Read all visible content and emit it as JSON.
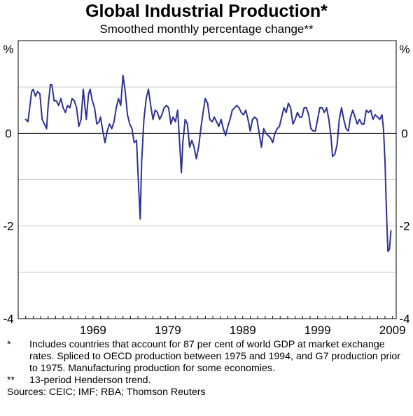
{
  "chart_data": {
    "type": "line",
    "title": "Global Industrial Production*",
    "subtitle": "Smoothed monthly percentage change**",
    "ylabel_left": "%",
    "ylabel_right": "%",
    "ylim": [
      -4,
      2
    ],
    "yticks": [
      0,
      -2,
      -4
    ],
    "yticks_top_label": "%",
    "xlim": [
      1959,
      2009.5
    ],
    "xticks": [
      1969,
      1979,
      1989,
      1999,
      2009
    ],
    "grid": "horizontal",
    "line_color": "#2e3192",
    "series": [
      {
        "values": [
          {
            "x": 1960.0,
            "y": 0.3
          },
          {
            "x": 1960.3,
            "y": 0.25
          },
          {
            "x": 1960.5,
            "y": 0.5
          },
          {
            "x": 1960.8,
            "y": 0.9
          },
          {
            "x": 1961.0,
            "y": 0.95
          },
          {
            "x": 1961.3,
            "y": 0.8
          },
          {
            "x": 1961.6,
            "y": 0.9
          },
          {
            "x": 1961.9,
            "y": 0.85
          },
          {
            "x": 1962.2,
            "y": 0.3
          },
          {
            "x": 1962.5,
            "y": 0.2
          },
          {
            "x": 1962.8,
            "y": 0.1
          },
          {
            "x": 1963.0,
            "y": 0.6
          },
          {
            "x": 1963.3,
            "y": 1.05
          },
          {
            "x": 1963.5,
            "y": 1.05
          },
          {
            "x": 1963.8,
            "y": 0.7
          },
          {
            "x": 1964.1,
            "y": 0.7
          },
          {
            "x": 1964.4,
            "y": 0.6
          },
          {
            "x": 1964.7,
            "y": 0.75
          },
          {
            "x": 1965.0,
            "y": 0.55
          },
          {
            "x": 1965.3,
            "y": 0.45
          },
          {
            "x": 1965.6,
            "y": 0.6
          },
          {
            "x": 1965.9,
            "y": 0.55
          },
          {
            "x": 1966.2,
            "y": 0.75
          },
          {
            "x": 1966.5,
            "y": 0.7
          },
          {
            "x": 1966.8,
            "y": 0.55
          },
          {
            "x": 1967.1,
            "y": 0.15
          },
          {
            "x": 1967.4,
            "y": 0.3
          },
          {
            "x": 1967.7,
            "y": 0.95
          },
          {
            "x": 1967.9,
            "y": 0.6
          },
          {
            "x": 1968.1,
            "y": 0.3
          },
          {
            "x": 1968.4,
            "y": 0.85
          },
          {
            "x": 1968.6,
            "y": 0.95
          },
          {
            "x": 1968.9,
            "y": 0.7
          },
          {
            "x": 1969.2,
            "y": 0.55
          },
          {
            "x": 1969.5,
            "y": 0.2
          },
          {
            "x": 1969.8,
            "y": 0.25
          },
          {
            "x": 1970.0,
            "y": 0.35
          },
          {
            "x": 1970.3,
            "y": 0.05
          },
          {
            "x": 1970.6,
            "y": -0.2
          },
          {
            "x": 1970.9,
            "y": 0.05
          },
          {
            "x": 1971.2,
            "y": 0.2
          },
          {
            "x": 1971.5,
            "y": 0.1
          },
          {
            "x": 1971.8,
            "y": 0.25
          },
          {
            "x": 1972.1,
            "y": 0.55
          },
          {
            "x": 1972.4,
            "y": 0.75
          },
          {
            "x": 1972.7,
            "y": 0.6
          },
          {
            "x": 1973.0,
            "y": 1.25
          },
          {
            "x": 1973.3,
            "y": 0.9
          },
          {
            "x": 1973.6,
            "y": 0.4
          },
          {
            "x": 1973.9,
            "y": 0.2
          },
          {
            "x": 1974.2,
            "y": 0.1
          },
          {
            "x": 1974.5,
            "y": -0.2
          },
          {
            "x": 1974.8,
            "y": -0.15
          },
          {
            "x": 1975.1,
            "y": -1.2
          },
          {
            "x": 1975.3,
            "y": -1.85
          },
          {
            "x": 1975.5,
            "y": -0.6
          },
          {
            "x": 1975.8,
            "y": 0.3
          },
          {
            "x": 1976.1,
            "y": 0.75
          },
          {
            "x": 1976.4,
            "y": 0.95
          },
          {
            "x": 1976.7,
            "y": 0.6
          },
          {
            "x": 1977.0,
            "y": 0.3
          },
          {
            "x": 1977.3,
            "y": 0.5
          },
          {
            "x": 1977.6,
            "y": 0.45
          },
          {
            "x": 1977.9,
            "y": 0.3
          },
          {
            "x": 1978.2,
            "y": 0.4
          },
          {
            "x": 1978.5,
            "y": 0.55
          },
          {
            "x": 1978.8,
            "y": 0.6
          },
          {
            "x": 1979.1,
            "y": 0.55
          },
          {
            "x": 1979.4,
            "y": 0.2
          },
          {
            "x": 1979.7,
            "y": 0.35
          },
          {
            "x": 1980.0,
            "y": 0.25
          },
          {
            "x": 1980.3,
            "y": 0.5
          },
          {
            "x": 1980.6,
            "y": -0.3
          },
          {
            "x": 1980.8,
            "y": -0.85
          },
          {
            "x": 1981.0,
            "y": -0.2
          },
          {
            "x": 1981.3,
            "y": 0.3
          },
          {
            "x": 1981.6,
            "y": 0.2
          },
          {
            "x": 1981.9,
            "y": -0.3
          },
          {
            "x": 1982.2,
            "y": -0.15
          },
          {
            "x": 1982.5,
            "y": -0.3
          },
          {
            "x": 1982.8,
            "y": -0.55
          },
          {
            "x": 1983.1,
            "y": -0.3
          },
          {
            "x": 1983.4,
            "y": 0.1
          },
          {
            "x": 1983.7,
            "y": 0.45
          },
          {
            "x": 1984.0,
            "y": 0.75
          },
          {
            "x": 1984.3,
            "y": 0.65
          },
          {
            "x": 1984.6,
            "y": 0.3
          },
          {
            "x": 1984.9,
            "y": 0.25
          },
          {
            "x": 1985.2,
            "y": 0.35
          },
          {
            "x": 1985.5,
            "y": 0.25
          },
          {
            "x": 1985.8,
            "y": 0.15
          },
          {
            "x": 1986.1,
            "y": 0.3
          },
          {
            "x": 1986.4,
            "y": 0.1
          },
          {
            "x": 1986.7,
            "y": -0.05
          },
          {
            "x": 1987.0,
            "y": 0.15
          },
          {
            "x": 1987.3,
            "y": 0.3
          },
          {
            "x": 1987.6,
            "y": 0.5
          },
          {
            "x": 1987.9,
            "y": 0.55
          },
          {
            "x": 1988.2,
            "y": 0.6
          },
          {
            "x": 1988.5,
            "y": 0.55
          },
          {
            "x": 1988.8,
            "y": 0.45
          },
          {
            "x": 1989.1,
            "y": 0.4
          },
          {
            "x": 1989.4,
            "y": 0.5
          },
          {
            "x": 1989.7,
            "y": 0.3
          },
          {
            "x": 1990.0,
            "y": 0.05
          },
          {
            "x": 1990.3,
            "y": 0.3
          },
          {
            "x": 1990.6,
            "y": 0.35
          },
          {
            "x": 1990.9,
            "y": 0.3
          },
          {
            "x": 1991.2,
            "y": 0.0
          },
          {
            "x": 1991.5,
            "y": -0.3
          },
          {
            "x": 1991.8,
            "y": 0.1
          },
          {
            "x": 1992.1,
            "y": 0.0
          },
          {
            "x": 1992.4,
            "y": -0.05
          },
          {
            "x": 1992.7,
            "y": -0.1
          },
          {
            "x": 1993.0,
            "y": -0.2
          },
          {
            "x": 1993.3,
            "y": 0.0
          },
          {
            "x": 1993.6,
            "y": 0.1
          },
          {
            "x": 1993.9,
            "y": 0.15
          },
          {
            "x": 1994.2,
            "y": 0.35
          },
          {
            "x": 1994.5,
            "y": 0.55
          },
          {
            "x": 1994.8,
            "y": 0.45
          },
          {
            "x": 1995.1,
            "y": 0.65
          },
          {
            "x": 1995.4,
            "y": 0.55
          },
          {
            "x": 1995.7,
            "y": 0.2
          },
          {
            "x": 1996.0,
            "y": 0.3
          },
          {
            "x": 1996.3,
            "y": 0.45
          },
          {
            "x": 1996.6,
            "y": 0.35
          },
          {
            "x": 1996.9,
            "y": 0.35
          },
          {
            "x": 1997.2,
            "y": 0.55
          },
          {
            "x": 1997.5,
            "y": 0.55
          },
          {
            "x": 1997.8,
            "y": 0.4
          },
          {
            "x": 1998.1,
            "y": 0.1
          },
          {
            "x": 1998.4,
            "y": 0.05
          },
          {
            "x": 1998.7,
            "y": 0.05
          },
          {
            "x": 1999.0,
            "y": 0.3
          },
          {
            "x": 1999.3,
            "y": 0.55
          },
          {
            "x": 1999.6,
            "y": 0.55
          },
          {
            "x": 1999.9,
            "y": 0.45
          },
          {
            "x": 2000.2,
            "y": 0.55
          },
          {
            "x": 2000.5,
            "y": 0.3
          },
          {
            "x": 2000.8,
            "y": -0.1
          },
          {
            "x": 2001.0,
            "y": -0.5
          },
          {
            "x": 2001.3,
            "y": -0.45
          },
          {
            "x": 2001.6,
            "y": -0.25
          },
          {
            "x": 2001.9,
            "y": 0.3
          },
          {
            "x": 2002.2,
            "y": 0.55
          },
          {
            "x": 2002.5,
            "y": 0.3
          },
          {
            "x": 2002.8,
            "y": 0.1
          },
          {
            "x": 2003.1,
            "y": 0.05
          },
          {
            "x": 2003.4,
            "y": 0.35
          },
          {
            "x": 2003.7,
            "y": 0.5
          },
          {
            "x": 2004.0,
            "y": 0.35
          },
          {
            "x": 2004.3,
            "y": 0.2
          },
          {
            "x": 2004.6,
            "y": 0.3
          },
          {
            "x": 2004.9,
            "y": 0.2
          },
          {
            "x": 2005.2,
            "y": 0.2
          },
          {
            "x": 2005.5,
            "y": 0.5
          },
          {
            "x": 2005.8,
            "y": 0.45
          },
          {
            "x": 2006.1,
            "y": 0.5
          },
          {
            "x": 2006.4,
            "y": 0.3
          },
          {
            "x": 2006.7,
            "y": 0.4
          },
          {
            "x": 2007.0,
            "y": 0.35
          },
          {
            "x": 2007.3,
            "y": 0.3
          },
          {
            "x": 2007.6,
            "y": 0.4
          },
          {
            "x": 2007.8,
            "y": 0.1
          },
          {
            "x": 2008.0,
            "y": -0.6
          },
          {
            "x": 2008.2,
            "y": -1.7
          },
          {
            "x": 2008.4,
            "y": -2.55
          },
          {
            "x": 2008.6,
            "y": -2.5
          },
          {
            "x": 2008.8,
            "y": -2.1
          }
        ]
      }
    ]
  },
  "footnotes": [
    {
      "marker": "*",
      "text": "Includes countries that account for 87 per cent of world GDP at market exchange rates. Spliced to OECD production between 1975 and 1994, and G7 production prior to 1975. Manufacturing production for some economies."
    },
    {
      "marker": "**",
      "text": "13-period Henderson trend."
    }
  ],
  "sources": "Sources: CEIC; IMF; RBA; Thomson Reuters"
}
